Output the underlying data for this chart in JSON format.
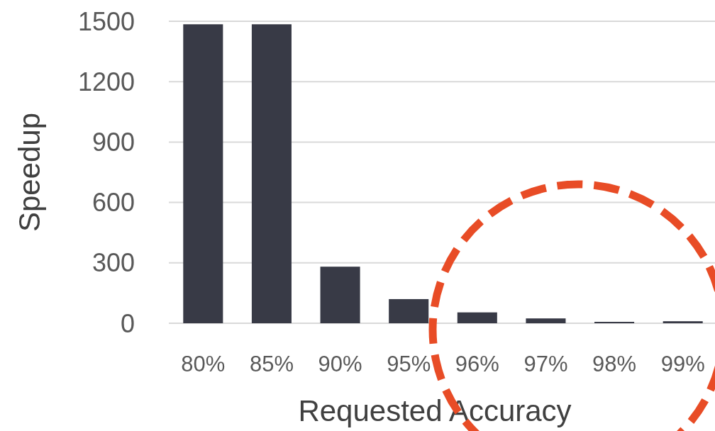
{
  "chart_data": {
    "type": "bar",
    "xlabel": "Requested Accuracy",
    "ylabel": "Speedup",
    "categories": [
      "80%",
      "85%",
      "90%",
      "95%",
      "96%",
      "97%",
      "98%",
      "99%"
    ],
    "values": [
      1485,
      1485,
      281,
      120,
      54,
      24,
      7,
      10
    ],
    "color": "#383a46",
    "ylim": [
      0,
      1500
    ],
    "yticks": [
      0,
      300,
      600,
      900,
      1200,
      1500
    ],
    "grid": "y"
  }
}
